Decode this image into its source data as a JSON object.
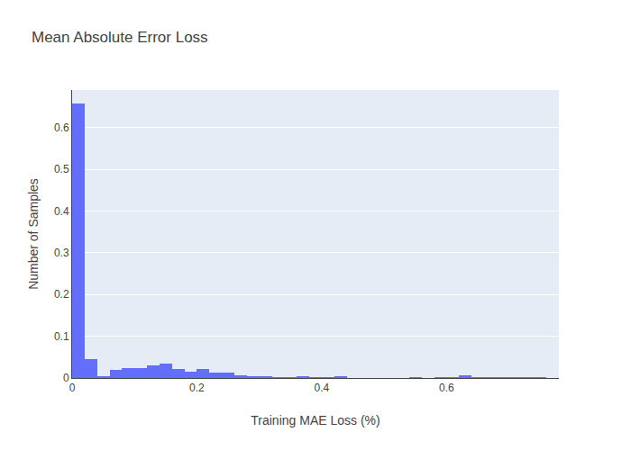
{
  "chart_data": {
    "type": "histogram",
    "title": "Mean Absolute Error Loss",
    "x_label": "Training MAE Loss (%)",
    "y_label": "Number of Samples",
    "bins": [
      0,
      0.02,
      0.04,
      0.06,
      0.08,
      0.1,
      0.12,
      0.14,
      0.16,
      0.18,
      0.2,
      0.22,
      0.24,
      0.26,
      0.28,
      0.3,
      0.32,
      0.34,
      0.36,
      0.38,
      0.4,
      0.42,
      0.44,
      0.46,
      0.48,
      0.5,
      0.52,
      0.54,
      0.56,
      0.58,
      0.6,
      0.62,
      0.64,
      0.66,
      0.68,
      0.7,
      0.72,
      0.74,
      0.76
    ],
    "values": [
      0.657,
      0.045,
      0.003,
      0.019,
      0.023,
      0.023,
      0.031,
      0.035,
      0.021,
      0.016,
      0.022,
      0.012,
      0.014,
      0.006,
      0.004,
      0.003,
      0.001,
      0.001,
      0.003,
      0.001,
      0.001,
      0.003,
      0,
      0,
      0,
      0,
      0,
      0.001,
      0,
      0.001,
      0.001,
      0.006,
      0.001,
      0.001,
      0.001,
      0.001,
      0.001,
      0.001
    ],
    "color": "#636efa",
    "xlim": [
      0,
      0.78
    ],
    "xticks": [
      0,
      0.2,
      0.4,
      0.6
    ],
    "ylim": [
      0,
      0.69
    ],
    "yticks": [
      0,
      0.1,
      0.2,
      0.3,
      0.4,
      0.5,
      0.6
    ],
    "grid": "y"
  }
}
